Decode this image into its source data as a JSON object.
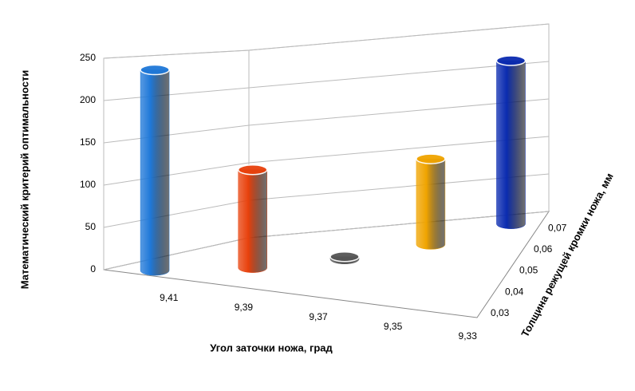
{
  "chart_data": {
    "type": "bar3d",
    "y_label": "Математический критерий оптимальности",
    "x_label": "Угол заточки ножа, град",
    "z_label": "Толщина режущей кромки ножа, мм",
    "categories": [
      "9,41",
      "9,39",
      "9,37",
      "9,35",
      "9,33"
    ],
    "depth_categories": [
      "0,03",
      "0,04",
      "0,05",
      "0,06",
      "0,07"
    ],
    "values": [
      240,
      120,
      3,
      110,
      215
    ],
    "colors": [
      "#1f78d8",
      "#e8410c",
      "#555555",
      "#f0a400",
      "#0a2bb0"
    ],
    "ylim": [
      0,
      250
    ],
    "yticks": [
      0,
      50,
      100,
      150,
      200,
      250
    ],
    "grid": true
  }
}
